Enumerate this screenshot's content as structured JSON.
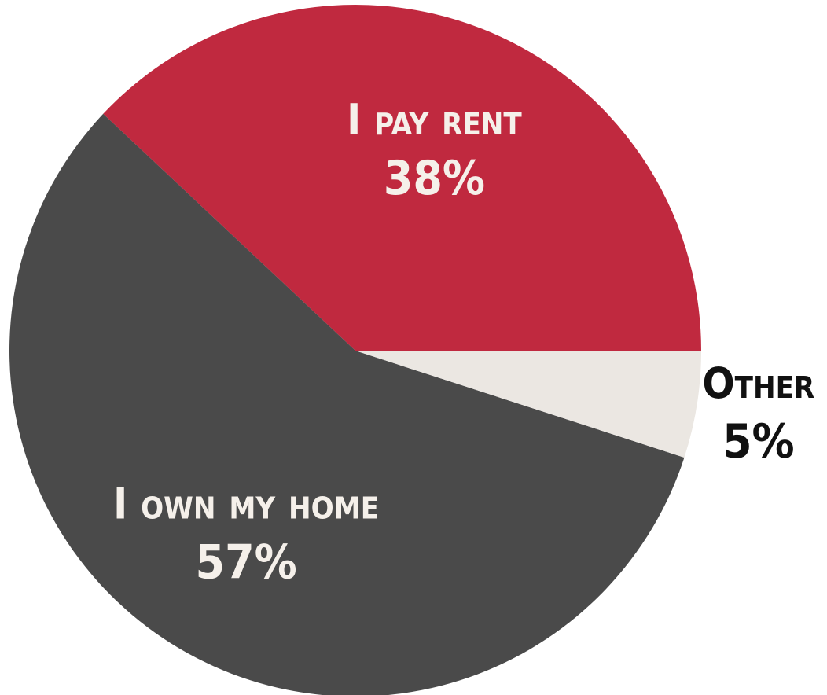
{
  "chart_data": {
    "type": "pie",
    "categories": [
      "I pay rent",
      "I own my home",
      "Other"
    ],
    "values": [
      38,
      57,
      5
    ],
    "value_labels": [
      "38%",
      "57%",
      "5%"
    ],
    "colors": [
      "#c0293f",
      "#4a4a4a",
      "#ebe7e2"
    ],
    "start_angle": 0,
    "direction": "counterclockwise"
  }
}
